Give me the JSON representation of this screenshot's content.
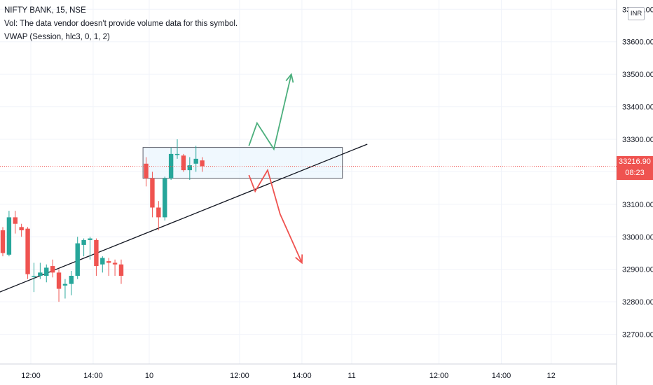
{
  "legend": {
    "symbol_line": "NIFTY BANK, 15, NSE",
    "volume_line": "Vol: The data vendor doesn't provide volume data for this symbol.",
    "vwap_line": "VWAP (Session, hlc3, 0, 1, 2)"
  },
  "currency": "INR",
  "last_price": {
    "value": "33216.90",
    "countdown": "08:23"
  },
  "colors": {
    "up": "#26a69a",
    "down": "#ef5350",
    "grid": "#f0f3fa",
    "axis_text": "#131722",
    "trendline": "#131722",
    "zone_fill": "#e3f2fd",
    "zone_border": "#5d606b",
    "bull_arrow": "#4caf7d",
    "bear_arrow": "#ef5350"
  },
  "chart_data": {
    "type": "candlestick",
    "title": "NIFTY BANK, 15, NSE",
    "ylim": [
      32600,
      33720
    ],
    "y_ticks": [
      {
        "value": 32700,
        "label": "32700.00"
      },
      {
        "value": 32800,
        "label": "32800.00"
      },
      {
        "value": 32900,
        "label": "32900.00"
      },
      {
        "value": 33000,
        "label": "33000.00"
      },
      {
        "value": 33100,
        "label": "33100.00"
      },
      {
        "value": 33200,
        "label": "33200.00"
      },
      {
        "value": 33300,
        "label": "33300.00"
      },
      {
        "value": 33400,
        "label": "33400.00"
      },
      {
        "value": 33500,
        "label": "33500.00"
      },
      {
        "value": 33600,
        "label": "33600.00"
      },
      {
        "value": 33700,
        "label": "33700.00"
      }
    ],
    "x_ticks": [
      {
        "slot": 4.5,
        "label": "12:00"
      },
      {
        "slot": 14.5,
        "label": "14:00"
      },
      {
        "slot": 23.5,
        "label": "10"
      },
      {
        "slot": 38,
        "label": "12:00"
      },
      {
        "slot": 48,
        "label": "14:00"
      },
      {
        "slot": 56,
        "label": "11"
      },
      {
        "slot": 70,
        "label": "12:00"
      },
      {
        "slot": 80,
        "label": "14:00"
      },
      {
        "slot": 88,
        "label": "12"
      }
    ],
    "x_slot_range": [
      0,
      98.5
    ],
    "candles": [
      {
        "slot": 0,
        "o": 33020,
        "h": 33030,
        "c": 32950,
        "l": 32940
      },
      {
        "slot": 1,
        "o": 32945,
        "h": 33080,
        "c": 33060,
        "l": 32940
      },
      {
        "slot": 2,
        "o": 33060,
        "h": 33080,
        "c": 33040,
        "l": 33010
      },
      {
        "slot": 3,
        "o": 33030,
        "h": 33040,
        "c": 33020,
        "l": 33000
      },
      {
        "slot": 4,
        "o": 33025,
        "h": 33030,
        "c": 32885,
        "l": 32870
      },
      {
        "slot": 5,
        "o": 32880,
        "h": 32920,
        "c": 32880,
        "l": 32830
      },
      {
        "slot": 6,
        "o": 32880,
        "h": 32920,
        "c": 32890,
        "l": 32870
      },
      {
        "slot": 7,
        "o": 32880,
        "h": 32915,
        "c": 32905,
        "l": 32860
      },
      {
        "slot": 8,
        "o": 32910,
        "h": 32930,
        "c": 32890,
        "l": 32875
      },
      {
        "slot": 9,
        "o": 32890,
        "h": 32900,
        "c": 32840,
        "l": 32800
      },
      {
        "slot": 10,
        "o": 32850,
        "h": 32870,
        "c": 32855,
        "l": 32810
      },
      {
        "slot": 11,
        "o": 32855,
        "h": 32895,
        "c": 32880,
        "l": 32820
      },
      {
        "slot": 12,
        "o": 32880,
        "h": 33000,
        "c": 32980,
        "l": 32870
      },
      {
        "slot": 13,
        "o": 32975,
        "h": 32995,
        "c": 32990,
        "l": 32940
      },
      {
        "slot": 14,
        "o": 32990,
        "h": 33000,
        "c": 32995,
        "l": 32930
      },
      {
        "slot": 15,
        "o": 32990,
        "h": 32995,
        "c": 32910,
        "l": 32880
      },
      {
        "slot": 16,
        "o": 32915,
        "h": 32940,
        "c": 32935,
        "l": 32890
      },
      {
        "slot": 17,
        "o": 32925,
        "h": 32935,
        "c": 32920,
        "l": 32880
      },
      {
        "slot": 18,
        "o": 32920,
        "h": 32930,
        "c": 32915,
        "l": 32880
      },
      {
        "slot": 19,
        "o": 32915,
        "h": 32930,
        "c": 32880,
        "l": 32855
      },
      {
        "slot": 23,
        "o": 33225,
        "h": 33245,
        "c": 33180,
        "l": 33155
      },
      {
        "slot": 24,
        "o": 33180,
        "h": 33200,
        "c": 33090,
        "l": 33060
      },
      {
        "slot": 25,
        "o": 33090,
        "h": 33110,
        "c": 33060,
        "l": 33020
      },
      {
        "slot": 26,
        "o": 33060,
        "h": 33185,
        "c": 33180,
        "l": 33050
      },
      {
        "slot": 27,
        "o": 33180,
        "h": 33275,
        "c": 33255,
        "l": 33175
      },
      {
        "slot": 28,
        "o": 33255,
        "h": 33300,
        "c": 33255,
        "l": 33240
      },
      {
        "slot": 29,
        "o": 33250,
        "h": 33255,
        "c": 33205,
        "l": 33200
      },
      {
        "slot": 30,
        "o": 33205,
        "h": 33245,
        "c": 33220,
        "l": 33175
      },
      {
        "slot": 31,
        "o": 33225,
        "h": 33280,
        "c": 33240,
        "l": 33200
      },
      {
        "slot": 32,
        "o": 33235,
        "h": 33245,
        "c": 33216.9,
        "l": 33200
      }
    ]
  }
}
